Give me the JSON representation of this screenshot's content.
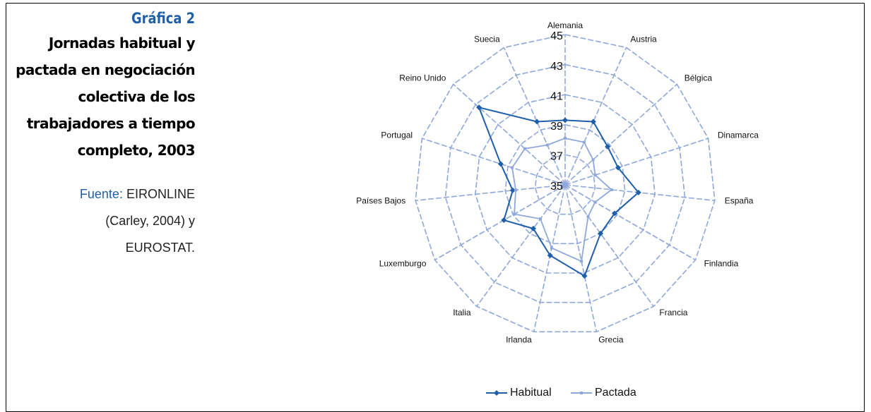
{
  "chart_data": {
    "type": "radar",
    "title": "Gráfica 2",
    "subtitle": "Jornadas habitual y pactada en negociación colectiva de los trabajadores a tiempo completo, 2003",
    "source_label": "Fuente:",
    "source": "EIRONLINE (Carley, 2004) y EUROSTAT.",
    "categories": [
      "Alemania",
      "Austria",
      "Bélgica",
      "Dinamarca",
      "España",
      "Finlandia",
      "Francia",
      "Grecia",
      "Irlanda",
      "Italia",
      "Luxemburgo",
      "Países Bajos",
      "Portugal",
      "Reino Unido",
      "Suecia"
    ],
    "series": [
      {
        "name": "Habitual",
        "color": "#1f5fa8",
        "values": [
          39.3,
          39.6,
          38.8,
          38.7,
          39.9,
          38.8,
          39.0,
          41.2,
          39.8,
          38.6,
          39.7,
          38.5,
          39.5,
          42.7,
          39.6
        ]
      },
      {
        "name": "Pactada",
        "color": "#8fa8dc",
        "values": [
          38.1,
          38.1,
          37.5,
          37.1,
          38.1,
          37.3,
          37.6,
          40.2,
          39.3,
          37.8,
          38.9,
          38.3,
          38.7,
          38.6,
          37.9
        ]
      }
    ],
    "ylim": [
      35,
      45
    ],
    "yticks": [
      35,
      37,
      39,
      41,
      43,
      45
    ],
    "grid": true,
    "legend": "bottom"
  }
}
